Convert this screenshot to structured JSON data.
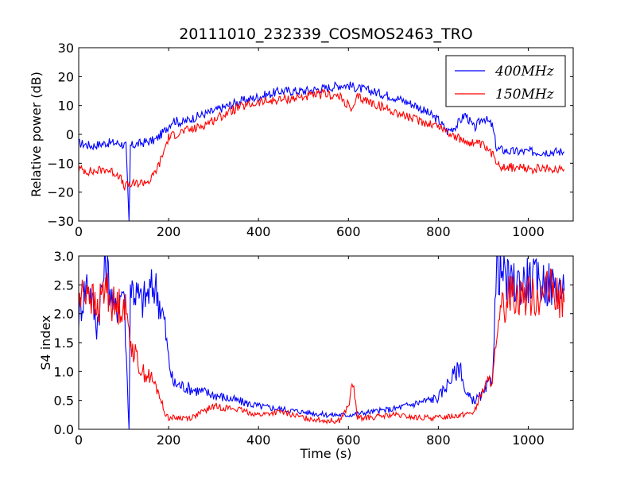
{
  "title": "20111010_232339_COSMOS2463_TRO",
  "colors": {
    "series_400": "#0000ff",
    "series_150": "#ff0000",
    "axes": "#000000",
    "background": "#ffffff"
  },
  "chart_data": [
    {
      "type": "line",
      "title": "20111010_232339_COSMOS2463_TRO",
      "xlabel": "",
      "ylabel": "Relative power (dB)",
      "xlim": [
        0,
        1100
      ],
      "ylim": [
        -30,
        30
      ],
      "xticks": [
        "0",
        "200",
        "400",
        "600",
        "800",
        "1000"
      ],
      "yticks": [
        "−30",
        "−20",
        "−10",
        "0",
        "10",
        "20",
        "30"
      ],
      "grid": false,
      "legend": "top-right",
      "series": [
        {
          "name": "400MHz",
          "color": "#0000ff",
          "points": [
            [
              0,
              -3
            ],
            [
              30,
              -4
            ],
            [
              60,
              -3
            ],
            [
              90,
              -3
            ],
            [
              105,
              -4
            ],
            [
              112,
              -30
            ],
            [
              115,
              -4
            ],
            [
              140,
              -3
            ],
            [
              170,
              -2
            ],
            [
              190,
              1
            ],
            [
              210,
              5
            ],
            [
              230,
              4
            ],
            [
              260,
              6
            ],
            [
              300,
              8
            ],
            [
              350,
              11
            ],
            [
              400,
              13
            ],
            [
              450,
              15
            ],
            [
              500,
              15
            ],
            [
              550,
              16
            ],
            [
              580,
              17
            ],
            [
              600,
              17
            ],
            [
              620,
              16
            ],
            [
              650,
              15
            ],
            [
              700,
              13
            ],
            [
              750,
              10
            ],
            [
              780,
              7
            ],
            [
              800,
              5
            ],
            [
              820,
              1
            ],
            [
              840,
              3
            ],
            [
              860,
              7
            ],
            [
              880,
              2
            ],
            [
              900,
              6
            ],
            [
              920,
              3
            ],
            [
              930,
              -5
            ],
            [
              960,
              -6
            ],
            [
              1000,
              -6
            ],
            [
              1050,
              -6
            ],
            [
              1080,
              -6
            ]
          ]
        },
        {
          "name": "150MHz",
          "color": "#ff0000",
          "points": [
            [
              0,
              -12
            ],
            [
              30,
              -13
            ],
            [
              60,
              -12
            ],
            [
              90,
              -14
            ],
            [
              100,
              -18
            ],
            [
              130,
              -17
            ],
            [
              160,
              -16
            ],
            [
              180,
              -10
            ],
            [
              200,
              -1
            ],
            [
              230,
              1
            ],
            [
              260,
              2
            ],
            [
              300,
              5
            ],
            [
              350,
              9
            ],
            [
              400,
              11
            ],
            [
              450,
              12
            ],
            [
              500,
              13
            ],
            [
              550,
              14
            ],
            [
              580,
              13
            ],
            [
              600,
              10
            ],
            [
              610,
              8
            ],
            [
              620,
              13
            ],
            [
              650,
              11
            ],
            [
              700,
              8
            ],
            [
              750,
              5
            ],
            [
              800,
              3
            ],
            [
              850,
              -2
            ],
            [
              880,
              -3
            ],
            [
              900,
              -4
            ],
            [
              920,
              -7
            ],
            [
              940,
              -11
            ],
            [
              1000,
              -12
            ],
            [
              1050,
              -12
            ],
            [
              1080,
              -12
            ]
          ]
        }
      ]
    },
    {
      "type": "line",
      "title": "",
      "xlabel": "Time (s)",
      "ylabel": "S4 index",
      "xlim": [
        0,
        1100
      ],
      "ylim": [
        0,
        3
      ],
      "xticks": [
        "0",
        "200",
        "400",
        "600",
        "800",
        "1000"
      ],
      "yticks": [
        "0.0",
        "0.5",
        "1.0",
        "1.5",
        "2.0",
        "2.5",
        "3.0"
      ],
      "grid": false,
      "legend": "none",
      "series": [
        {
          "name": "400MHz",
          "color": "#0000ff",
          "points": [
            [
              0,
              2.0
            ],
            [
              20,
              2.6
            ],
            [
              40,
              1.8
            ],
            [
              60,
              2.9
            ],
            [
              80,
              2.0
            ],
            [
              100,
              2.5
            ],
            [
              112,
              0.0
            ],
            [
              115,
              2.5
            ],
            [
              140,
              2.2
            ],
            [
              170,
              2.5
            ],
            [
              190,
              1.9
            ],
            [
              200,
              1.2
            ],
            [
              210,
              0.8
            ],
            [
              250,
              0.7
            ],
            [
              300,
              0.6
            ],
            [
              350,
              0.5
            ],
            [
              400,
              0.4
            ],
            [
              450,
              0.35
            ],
            [
              500,
              0.3
            ],
            [
              550,
              0.25
            ],
            [
              600,
              0.25
            ],
            [
              650,
              0.3
            ],
            [
              700,
              0.35
            ],
            [
              750,
              0.45
            ],
            [
              800,
              0.55
            ],
            [
              830,
              0.9
            ],
            [
              850,
              1.1
            ],
            [
              860,
              0.6
            ],
            [
              880,
              0.5
            ],
            [
              900,
              0.6
            ],
            [
              920,
              0.9
            ],
            [
              930,
              2.8
            ],
            [
              960,
              2.5
            ],
            [
              1000,
              2.6
            ],
            [
              1050,
              2.5
            ],
            [
              1080,
              2.4
            ]
          ]
        },
        {
          "name": "150MHz",
          "color": "#ff0000",
          "points": [
            [
              0,
              2.2
            ],
            [
              20,
              2.5
            ],
            [
              40,
              2.0
            ],
            [
              60,
              2.5
            ],
            [
              80,
              2.1
            ],
            [
              100,
              2.2
            ],
            [
              120,
              1.4
            ],
            [
              140,
              1.0
            ],
            [
              160,
              0.9
            ],
            [
              180,
              0.6
            ],
            [
              190,
              0.3
            ],
            [
              200,
              0.2
            ],
            [
              250,
              0.2
            ],
            [
              300,
              0.4
            ],
            [
              350,
              0.35
            ],
            [
              400,
              0.25
            ],
            [
              450,
              0.3
            ],
            [
              500,
              0.2
            ],
            [
              550,
              0.15
            ],
            [
              580,
              0.15
            ],
            [
              600,
              0.4
            ],
            [
              610,
              0.8
            ],
            [
              620,
              0.2
            ],
            [
              650,
              0.2
            ],
            [
              700,
              0.25
            ],
            [
              750,
              0.2
            ],
            [
              800,
              0.2
            ],
            [
              850,
              0.25
            ],
            [
              880,
              0.3
            ],
            [
              900,
              0.7
            ],
            [
              920,
              0.9
            ],
            [
              940,
              2.0
            ],
            [
              960,
              2.4
            ],
            [
              1000,
              2.3
            ],
            [
              1050,
              2.4
            ],
            [
              1080,
              2.2
            ]
          ]
        }
      ]
    }
  ]
}
